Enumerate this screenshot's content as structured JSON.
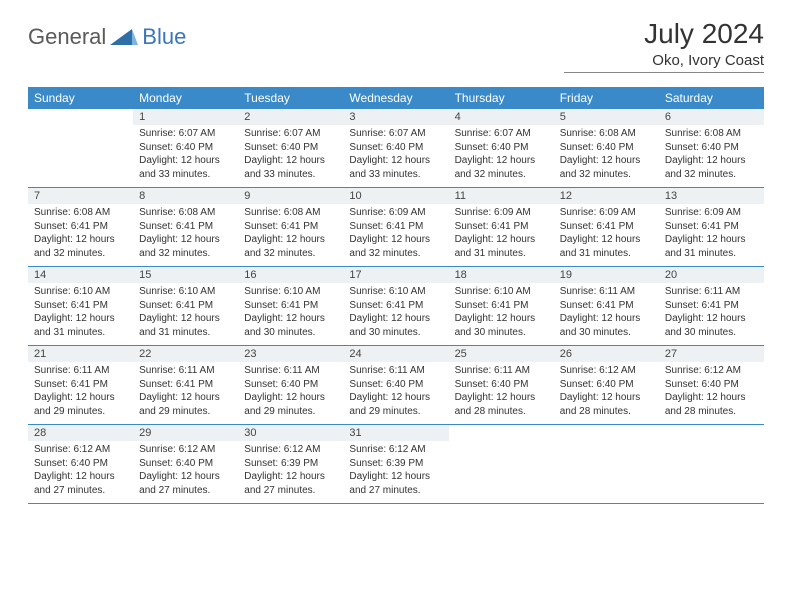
{
  "logo": {
    "part1": "General",
    "part2": "Blue"
  },
  "title": "July 2024",
  "subtitle": "Oko, Ivory Coast",
  "colors": {
    "header_bg": "#3a8ac9",
    "header_fg": "#ffffff",
    "daynum_bg": "#eef1f3",
    "week_border": "#3a8ac9",
    "logo_gray": "#5a5a5a",
    "logo_blue": "#3a76b8"
  },
  "day_names": [
    "Sunday",
    "Monday",
    "Tuesday",
    "Wednesday",
    "Thursday",
    "Friday",
    "Saturday"
  ],
  "start_offset": 1,
  "days": [
    {
      "n": 1,
      "sunrise": "6:07 AM",
      "sunset": "6:40 PM",
      "dl": "12 hours and 33 minutes."
    },
    {
      "n": 2,
      "sunrise": "6:07 AM",
      "sunset": "6:40 PM",
      "dl": "12 hours and 33 minutes."
    },
    {
      "n": 3,
      "sunrise": "6:07 AM",
      "sunset": "6:40 PM",
      "dl": "12 hours and 33 minutes."
    },
    {
      "n": 4,
      "sunrise": "6:07 AM",
      "sunset": "6:40 PM",
      "dl": "12 hours and 32 minutes."
    },
    {
      "n": 5,
      "sunrise": "6:08 AM",
      "sunset": "6:40 PM",
      "dl": "12 hours and 32 minutes."
    },
    {
      "n": 6,
      "sunrise": "6:08 AM",
      "sunset": "6:40 PM",
      "dl": "12 hours and 32 minutes."
    },
    {
      "n": 7,
      "sunrise": "6:08 AM",
      "sunset": "6:41 PM",
      "dl": "12 hours and 32 minutes."
    },
    {
      "n": 8,
      "sunrise": "6:08 AM",
      "sunset": "6:41 PM",
      "dl": "12 hours and 32 minutes."
    },
    {
      "n": 9,
      "sunrise": "6:08 AM",
      "sunset": "6:41 PM",
      "dl": "12 hours and 32 minutes."
    },
    {
      "n": 10,
      "sunrise": "6:09 AM",
      "sunset": "6:41 PM",
      "dl": "12 hours and 32 minutes."
    },
    {
      "n": 11,
      "sunrise": "6:09 AM",
      "sunset": "6:41 PM",
      "dl": "12 hours and 31 minutes."
    },
    {
      "n": 12,
      "sunrise": "6:09 AM",
      "sunset": "6:41 PM",
      "dl": "12 hours and 31 minutes."
    },
    {
      "n": 13,
      "sunrise": "6:09 AM",
      "sunset": "6:41 PM",
      "dl": "12 hours and 31 minutes."
    },
    {
      "n": 14,
      "sunrise": "6:10 AM",
      "sunset": "6:41 PM",
      "dl": "12 hours and 31 minutes."
    },
    {
      "n": 15,
      "sunrise": "6:10 AM",
      "sunset": "6:41 PM",
      "dl": "12 hours and 31 minutes."
    },
    {
      "n": 16,
      "sunrise": "6:10 AM",
      "sunset": "6:41 PM",
      "dl": "12 hours and 30 minutes."
    },
    {
      "n": 17,
      "sunrise": "6:10 AM",
      "sunset": "6:41 PM",
      "dl": "12 hours and 30 minutes."
    },
    {
      "n": 18,
      "sunrise": "6:10 AM",
      "sunset": "6:41 PM",
      "dl": "12 hours and 30 minutes."
    },
    {
      "n": 19,
      "sunrise": "6:11 AM",
      "sunset": "6:41 PM",
      "dl": "12 hours and 30 minutes."
    },
    {
      "n": 20,
      "sunrise": "6:11 AM",
      "sunset": "6:41 PM",
      "dl": "12 hours and 30 minutes."
    },
    {
      "n": 21,
      "sunrise": "6:11 AM",
      "sunset": "6:41 PM",
      "dl": "12 hours and 29 minutes."
    },
    {
      "n": 22,
      "sunrise": "6:11 AM",
      "sunset": "6:41 PM",
      "dl": "12 hours and 29 minutes."
    },
    {
      "n": 23,
      "sunrise": "6:11 AM",
      "sunset": "6:40 PM",
      "dl": "12 hours and 29 minutes."
    },
    {
      "n": 24,
      "sunrise": "6:11 AM",
      "sunset": "6:40 PM",
      "dl": "12 hours and 29 minutes."
    },
    {
      "n": 25,
      "sunrise": "6:11 AM",
      "sunset": "6:40 PM",
      "dl": "12 hours and 28 minutes."
    },
    {
      "n": 26,
      "sunrise": "6:12 AM",
      "sunset": "6:40 PM",
      "dl": "12 hours and 28 minutes."
    },
    {
      "n": 27,
      "sunrise": "6:12 AM",
      "sunset": "6:40 PM",
      "dl": "12 hours and 28 minutes."
    },
    {
      "n": 28,
      "sunrise": "6:12 AM",
      "sunset": "6:40 PM",
      "dl": "12 hours and 27 minutes."
    },
    {
      "n": 29,
      "sunrise": "6:12 AM",
      "sunset": "6:40 PM",
      "dl": "12 hours and 27 minutes."
    },
    {
      "n": 30,
      "sunrise": "6:12 AM",
      "sunset": "6:39 PM",
      "dl": "12 hours and 27 minutes."
    },
    {
      "n": 31,
      "sunrise": "6:12 AM",
      "sunset": "6:39 PM",
      "dl": "12 hours and 27 minutes."
    }
  ],
  "labels": {
    "sunrise": "Sunrise:",
    "sunset": "Sunset:",
    "daylight": "Daylight:"
  }
}
